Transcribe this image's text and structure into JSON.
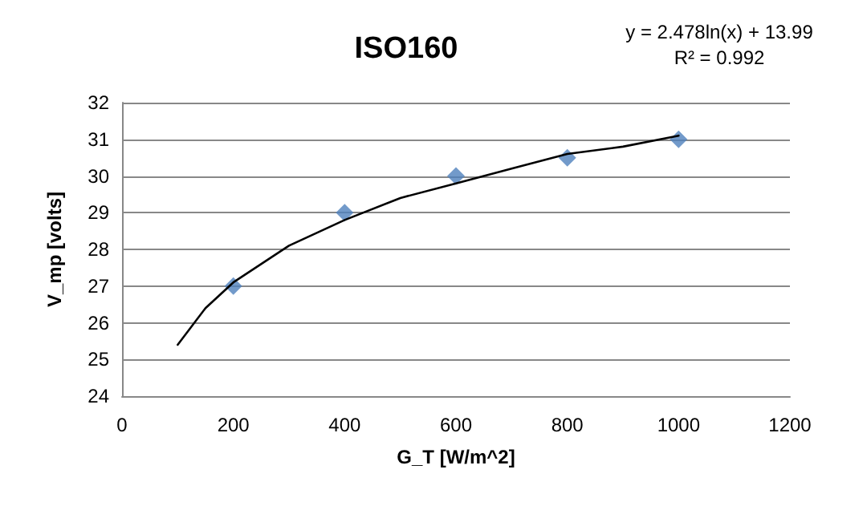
{
  "chart_data": {
    "type": "scatter",
    "title": "ISO160",
    "xlabel": "G_T [W/m^2]",
    "ylabel": "V_mp [volts]",
    "annotations": [
      "y = 2.478ln(x) + 13.99",
      "R² = 0.992"
    ],
    "series": [
      {
        "color": "#4f81bd",
        "marker": "diamond",
        "x": [
          200,
          400,
          600,
          800,
          1000
        ],
        "values": [
          27,
          29,
          30,
          30.5,
          31
        ]
      },
      {
        "type": "line",
        "color": "#000000",
        "marker": "none",
        "line_style": "solid",
        "x": [
          100,
          150,
          200,
          300,
          400,
          500,
          600,
          700,
          800,
          900,
          1000
        ],
        "values": [
          25.4,
          26.4,
          27.1,
          28.1,
          28.8,
          29.4,
          29.8,
          30.2,
          30.6,
          30.8,
          31.1
        ]
      }
    ],
    "xlim": [
      0,
      1200
    ],
    "xticks": [
      0,
      200,
      400,
      600,
      800,
      1000,
      1200
    ],
    "ylim": [
      24,
      32
    ],
    "yticks": [
      24,
      25,
      26,
      27,
      28,
      29,
      30,
      31,
      32
    ],
    "grid": "y"
  }
}
